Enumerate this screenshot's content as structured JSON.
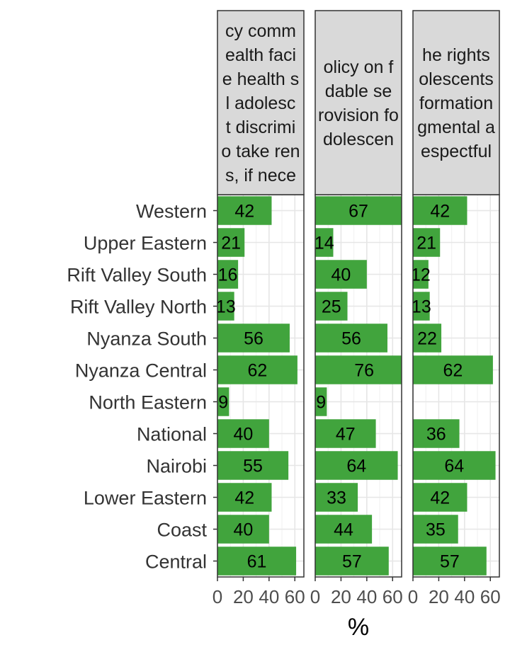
{
  "chart_data": {
    "type": "bar",
    "orientation": "horizontal",
    "xlabel": "%",
    "ylabel": "",
    "xlim": [
      0,
      67
    ],
    "x_ticks": [
      0,
      20,
      40,
      60
    ],
    "x_tick_labels": [
      "0",
      "20",
      "40",
      "60"
    ],
    "grid": true,
    "bar_color": "#41a43d",
    "categories": [
      "Western",
      "Upper Eastern",
      "Rift Valley South",
      "Rift Valley North",
      "Nyanza South",
      "Nyanza Central",
      "North Eastern",
      "National",
      "Nairobi",
      "Lower Eastern",
      "Coast",
      "Central"
    ],
    "panels": [
      {
        "strip_lines": [
          "cy comm",
          "ealth faci",
          "e health s",
          "l adolesc",
          "t discrimi",
          "o take ren",
          "s, if nece"
        ],
        "values": [
          42,
          21,
          16,
          13,
          56,
          62,
          9,
          40,
          55,
          42,
          40,
          61
        ]
      },
      {
        "strip_lines": [
          "olicy on f",
          "dable se",
          "rovision fo",
          "dolescen"
        ],
        "values": [
          67,
          14,
          40,
          25,
          56,
          76,
          9,
          47,
          64,
          33,
          44,
          57
        ]
      },
      {
        "strip_lines": [
          "he rights",
          "olescents",
          "formation",
          "gmental a",
          "espectful"
        ],
        "values": [
          42,
          21,
          12,
          13,
          22,
          62,
          null,
          36,
          64,
          42,
          35,
          57
        ]
      }
    ]
  }
}
